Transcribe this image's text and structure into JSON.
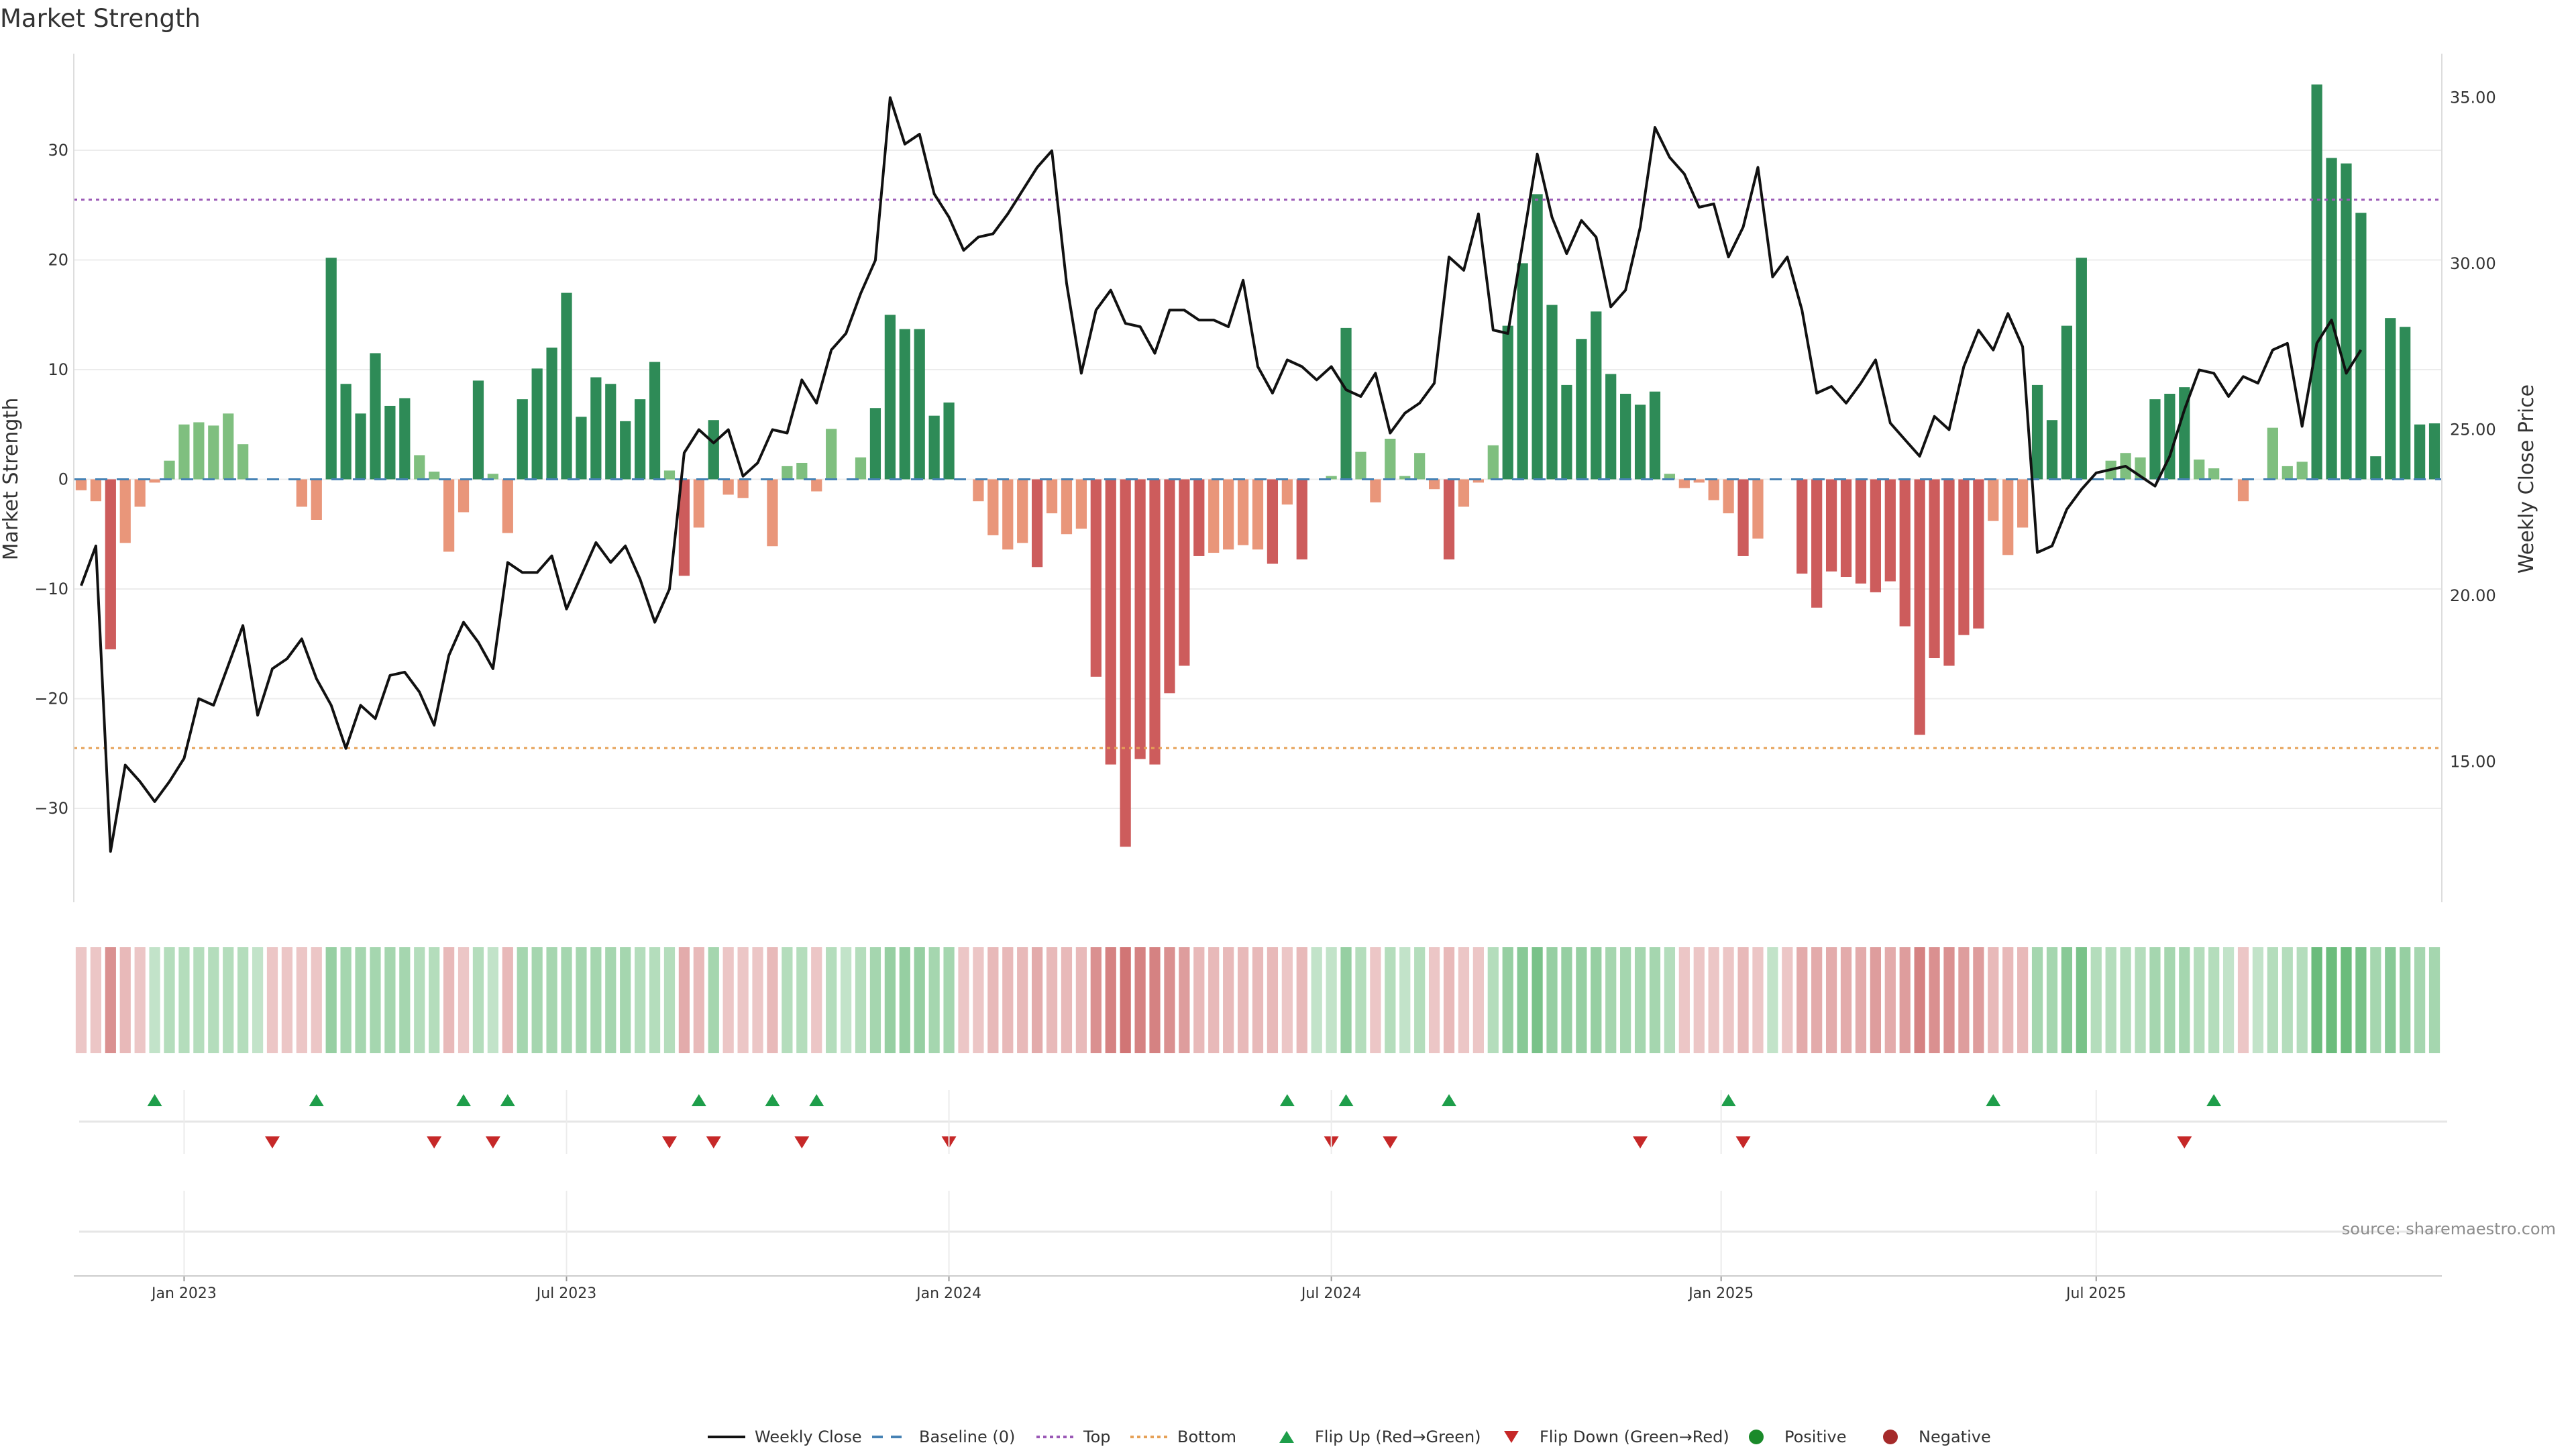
{
  "chart_data": {
    "type": "bar",
    "title": "Market Strength",
    "ylabel": "Market Strength",
    "y2label": "Weekly Close Price",
    "ylim": [
      -40,
      37
    ],
    "y2lim": [
      10.0,
      35.8
    ],
    "yticks": [
      "−30",
      "−20",
      "−10",
      "0",
      "10",
      "20",
      "30"
    ],
    "ytick_values": [
      -30,
      -20,
      -10,
      0,
      10,
      20,
      30
    ],
    "y2ticks": [
      "15.00",
      "20.00",
      "25.00",
      "30.00",
      "35.00"
    ],
    "y2tick_values": [
      15,
      20,
      25,
      30,
      35
    ],
    "x_labels": [
      "Jan 2023",
      "Jul 2023",
      "Jan 2024",
      "Jul 2024",
      "Jan 2025",
      "Jul 2025"
    ],
    "x_label_week_index": [
      7.5,
      33.5,
      59.5,
      85.5,
      112,
      137.5
    ],
    "top_level": 25.5,
    "bottom_level": -24.5,
    "strength": [
      -1,
      -2,
      -15.5,
      -5.8,
      -2.5,
      -0.3,
      1.7,
      5,
      5.2,
      4.9,
      6,
      3.2,
      0,
      0,
      0,
      -2.5,
      -3.7,
      20.2,
      8.7,
      6,
      11.5,
      6.7,
      7.4,
      2.2,
      0.7,
      -6.6,
      -3,
      9,
      0.5,
      -4.9,
      7.3,
      10.1,
      12,
      17,
      5.7,
      9.3,
      8.7,
      5.3,
      7.3,
      10.7,
      0.8,
      -8.8,
      -4.4,
      5.4,
      -1.4,
      -1.7,
      0,
      -6.1,
      1.2,
      1.5,
      -1.1,
      4.6,
      0,
      2,
      6.5,
      15,
      13.7,
      13.7,
      5.8,
      7,
      0,
      -2,
      -5.1,
      -6.4,
      -5.8,
      -8,
      -3.1,
      -5,
      -4.5,
      -18,
      -26,
      -33.5,
      -25.5,
      -26,
      -19.5,
      -17,
      -7,
      -6.7,
      -6.4,
      -6,
      -6.4,
      -7.7,
      -2.3,
      -7.3,
      0,
      0.3,
      13.8,
      2.5,
      -2.1,
      3.7,
      0.3,
      2.4,
      -0.9,
      -7.3,
      -2.5,
      -0.3,
      3.1,
      14,
      19.7,
      26,
      15.9,
      8.6,
      12.8,
      15.3,
      9.6,
      7.8,
      6.8,
      8,
      0.5,
      -0.8,
      -0.3,
      -1.9,
      -3.1,
      -7,
      -5.4,
      0,
      0,
      -8.6,
      -11.7,
      -8.4,
      -8.9,
      -9.5,
      -10.3,
      -9.3,
      -13.4,
      -23.3,
      -16.3,
      -17,
      -14.2,
      -13.6,
      -3.8,
      -6.9,
      -4.4,
      8.6,
      5.4,
      14,
      20.2,
      0,
      1.7,
      2.4,
      2,
      7.3,
      7.8,
      8.4,
      1.8,
      1,
      0,
      -2,
      0,
      4.7,
      1.2,
      1.6,
      36,
      29.3,
      28.8,
      24.3,
      2.1,
      14.7,
      13.9,
      5,
      5.1
    ],
    "weekly_close": [
      20.3,
      21.5,
      12.3,
      14.9,
      14.4,
      13.8,
      14.4,
      15.1,
      16.9,
      16.7,
      17.9,
      19.1,
      16.4,
      17.8,
      18.1,
      18.7,
      17.5,
      16.7,
      15.4,
      16.7,
      16.3,
      17.6,
      17.7,
      17.1,
      16.1,
      18.2,
      19.2,
      18.6,
      17.8,
      21,
      20.7,
      20.7,
      21.2,
      19.6,
      20.6,
      21.6,
      21,
      21.5,
      20.5,
      19.2,
      20.2,
      24.3,
      25,
      24.6,
      25,
      23.6,
      24,
      25,
      24.9,
      26.5,
      25.8,
      27.4,
      27.9,
      29.1,
      30.1,
      35,
      33.6,
      33.9,
      32.1,
      31.4,
      30.4,
      30.8,
      30.9,
      31.5,
      32.2,
      32.9,
      33.4,
      29.4,
      26.7,
      28.6,
      29.2,
      28.2,
      28.1,
      27.3,
      28.6,
      28.6,
      28.3,
      28.3,
      28.1,
      29.5,
      26.9,
      26.1,
      27.1,
      26.9,
      26.5,
      26.9,
      26.2,
      26,
      26.7,
      24.9,
      25.5,
      25.8,
      26.4,
      30.2,
      29.8,
      31.5,
      28,
      27.9,
      30.6,
      33.3,
      31.4,
      30.3,
      31.3,
      30.8,
      28.7,
      29.2,
      31.1,
      34.1,
      33.2,
      32.7,
      31.7,
      31.8,
      30.2,
      31.1,
      32.9,
      29.6,
      30.2,
      28.6,
      26.1,
      26.3,
      25.8,
      26.4,
      27.1,
      25.2,
      24.7,
      24.2,
      25.4,
      25,
      26.9,
      28,
      27.4,
      28.5,
      27.5,
      21.3,
      21.5,
      22.6,
      23.2,
      23.7,
      23.8,
      23.9,
      23.6,
      23.3,
      24.2,
      25.6,
      26.8,
      26.7,
      26,
      26.6,
      26.4,
      27.4,
      27.6,
      25.1,
      27.6,
      28.3,
      26.7,
      27.4
    ],
    "shade": [
      -0.2,
      -0.2,
      -0.6,
      -0.3,
      -0.2,
      0.2,
      0.3,
      0.3,
      0.3,
      0.3,
      0.3,
      0.3,
      0.2,
      -0.2,
      -0.2,
      -0.2,
      -0.2,
      0.5,
      0.4,
      0.4,
      0.4,
      0.4,
      0.4,
      0.3,
      0.3,
      -0.3,
      -0.2,
      0.3,
      0.2,
      -0.3,
      0.4,
      0.4,
      0.4,
      0.4,
      0.4,
      0.4,
      0.4,
      0.4,
      0.3,
      0.3,
      0.3,
      -0.4,
      -0.3,
      0.4,
      -0.2,
      -0.2,
      -0.2,
      -0.3,
      0.3,
      0.3,
      -0.2,
      0.3,
      0.2,
      0.3,
      0.4,
      0.5,
      0.5,
      0.5,
      0.4,
      0.4,
      -0.2,
      -0.2,
      -0.3,
      -0.3,
      -0.3,
      -0.4,
      -0.3,
      -0.3,
      -0.3,
      -0.6,
      -0.7,
      -0.8,
      -0.7,
      -0.7,
      -0.6,
      -0.5,
      -0.3,
      -0.3,
      -0.3,
      -0.3,
      -0.3,
      -0.3,
      -0.2,
      -0.3,
      0.2,
      0.2,
      0.5,
      0.3,
      -0.2,
      0.3,
      0.2,
      0.3,
      -0.2,
      -0.3,
      -0.2,
      -0.2,
      0.3,
      0.5,
      0.6,
      0.7,
      0.5,
      0.5,
      0.5,
      0.5,
      0.4,
      0.4,
      0.4,
      0.4,
      0.3,
      -0.2,
      -0.2,
      -0.2,
      -0.2,
      -0.3,
      -0.2,
      0.2,
      -0.2,
      -0.4,
      -0.4,
      -0.4,
      -0.4,
      -0.4,
      -0.5,
      -0.4,
      -0.5,
      -0.7,
      -0.6,
      -0.6,
      -0.5,
      -0.5,
      -0.3,
      -0.3,
      -0.3,
      0.4,
      0.4,
      0.6,
      0.7,
      0.3,
      0.3,
      0.3,
      0.3,
      0.4,
      0.4,
      0.4,
      0.3,
      0.3,
      0.2,
      -0.2,
      0.2,
      0.3,
      0.3,
      0.3,
      0.8,
      0.8,
      0.8,
      0.7,
      0.4,
      0.6,
      0.5,
      0.4,
      0.4
    ],
    "flip_up_weeks": [
      5,
      16,
      26,
      29,
      42,
      47,
      50,
      82,
      86,
      93,
      112,
      130,
      145
    ],
    "flip_down_weeks": [
      13,
      24,
      28,
      40,
      43,
      49,
      59,
      85,
      89,
      106,
      113,
      143
    ],
    "legend": [
      "Weekly Close",
      "Baseline (0)",
      "Top",
      "Bottom",
      "Flip Up (Red→Green)",
      "Flip Down (Green→Red)",
      "Positive",
      "Negative"
    ],
    "source": "source: sharemaestro.com"
  },
  "colors": {
    "pos_strong": "#2e8b57",
    "pos_weak": "#7fbf7f",
    "neg_strong": "#cd5c5c",
    "neg_weak": "#e9967a",
    "price_line": "#111111",
    "baseline": "#4682b4",
    "top": "#9b59b6",
    "bottom": "#e6a157",
    "flip_up": "#1e9e4a",
    "flip_down": "#c62828",
    "positive_dot": "#1a8a2a",
    "negative_dot": "#a52a2a"
  }
}
